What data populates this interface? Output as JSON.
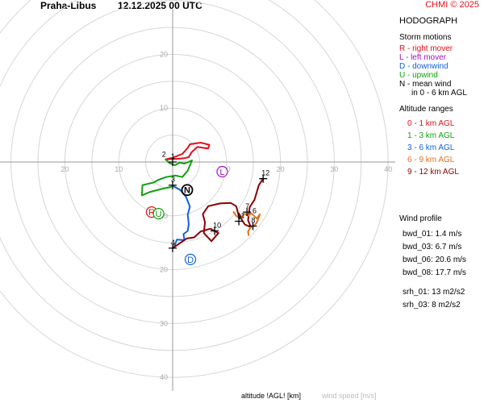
{
  "header": {
    "station": "Praha-Libus",
    "datetime": "12.12.2025 00 UTC",
    "copyright": "CHMI © 2025"
  },
  "panel": {
    "title": "HODOGRAPH",
    "storm_title": "Storm motions",
    "storm_items": [
      {
        "text": "R - right mover",
        "color": "#e0101b"
      },
      {
        "text": "L - left mover",
        "color": "#a010c0"
      },
      {
        "text": "D - downwind",
        "color": "#1060e0"
      },
      {
        "text": "U - upwind",
        "color": "#10a010"
      },
      {
        "text": "N - mean wind",
        "color": "#000000"
      }
    ],
    "storm_note": "in 0 - 6 km AGL",
    "alt_title": "Altitude ranges",
    "alt_items": [
      {
        "text": "0 - 1 km AGL",
        "color": "#e0101b"
      },
      {
        "text": "1 - 3 km AGL",
        "color": "#10a010"
      },
      {
        "text": "3 - 6 km AGL",
        "color": "#1060e0"
      },
      {
        "text": "6 - 9 km AGL",
        "color": "#e07020"
      },
      {
        "text": "9 - 12 km AGL",
        "color": "#8b0000"
      }
    ],
    "wind_title": "Wind profile",
    "wind_items": [
      "bwd_01: 1.4 m/s",
      "bwd_03: 6.7 m/s",
      "bwd_06: 20.6 m/s",
      "bwd_08: 17.7 m/s"
    ],
    "srh_items": [
      "srh_01: 13 m2/s2",
      "srh_03: 8 m2/s2"
    ]
  },
  "footer": {
    "altitude_label": "altitude !AGL! [km]",
    "speed_label": "wind speed [m/s]"
  },
  "chart_data": {
    "type": "line",
    "rings": [
      5,
      10,
      15,
      20,
      25,
      30,
      35,
      40
    ],
    "x_ticks": [
      {
        "v": -20,
        "t": "20"
      },
      {
        "v": -10,
        "t": "10"
      },
      {
        "v": 10,
        "t": "10"
      },
      {
        "v": 20,
        "t": "20"
      },
      {
        "v": 30,
        "t": "30"
      },
      {
        "v": 40,
        "t": "40"
      }
    ],
    "y_ticks": [
      {
        "v": 20,
        "t": "20"
      },
      {
        "v": 10,
        "t": "10"
      },
      {
        "v": -10,
        "t": "10"
      },
      {
        "v": -20,
        "t": "20"
      },
      {
        "v": -30,
        "t": "30"
      },
      {
        "v": -40,
        "t": "40"
      }
    ],
    "segments": [
      {
        "color": "#e0101b",
        "points": [
          [
            -1.3,
            0.5
          ],
          [
            0,
            0.8
          ],
          [
            1.8,
            1.5
          ],
          [
            2.8,
            2.6
          ],
          [
            3.2,
            3.3
          ],
          [
            5.2,
            3.6
          ],
          [
            6.8,
            3.2
          ],
          [
            6.6,
            2.5
          ],
          [
            4.6,
            2.8
          ],
          [
            3.5,
            1.8
          ],
          [
            3.0,
            0.9
          ],
          [
            2.2,
            0.7
          ],
          [
            1.0,
            0.6
          ],
          [
            -1.3,
            0.5
          ]
        ]
      },
      {
        "color": "#10a010",
        "points": [
          [
            -1.3,
            0.5
          ],
          [
            -0.6,
            -0.2
          ],
          [
            0.4,
            -0.6
          ],
          [
            1.3,
            -0.1
          ],
          [
            2.2,
            -0.3
          ],
          [
            3.6,
            0.3
          ],
          [
            2.8,
            -1.6
          ],
          [
            1.8,
            -2.8
          ],
          [
            0.5,
            -2.5
          ],
          [
            -1.2,
            -2.8
          ],
          [
            -2.6,
            -3.3
          ],
          [
            -3.5,
            -3.8
          ],
          [
            -5.6,
            -4.3
          ],
          [
            -5.7,
            -6.2
          ],
          [
            -4.3,
            -5.6
          ],
          [
            -2.0,
            -5.0
          ],
          [
            0.2,
            -4.5
          ]
        ]
      },
      {
        "color": "#1060e0",
        "points": [
          [
            0.2,
            -4.5
          ],
          [
            1.4,
            -5.2
          ],
          [
            2.5,
            -6.5
          ],
          [
            3.2,
            -8.3
          ],
          [
            2.8,
            -9.8
          ],
          [
            3.0,
            -11.5
          ],
          [
            2.8,
            -12.8
          ],
          [
            2.0,
            -13.4
          ],
          [
            2.2,
            -14.5
          ],
          [
            0.8,
            -14.4
          ],
          [
            0.3,
            -15.7
          ],
          [
            0,
            -16.0
          ]
        ]
      },
      {
        "color": "#8b0000",
        "points": [
          [
            0,
            -16.0
          ],
          [
            2.6,
            -14.2
          ],
          [
            4.0,
            -14.0
          ],
          [
            5.2,
            -12.9
          ],
          [
            7.0,
            -12.4
          ],
          [
            8.5,
            -13.2
          ],
          [
            7.2,
            -14.7
          ],
          [
            5.8,
            -13.2
          ],
          [
            6.0,
            -11.2
          ],
          [
            5.6,
            -9.7
          ],
          [
            6.6,
            -8.2
          ],
          [
            8.8,
            -7.7
          ],
          [
            10.8,
            -7.6
          ],
          [
            11.8,
            -8.2
          ],
          [
            12.2,
            -9.7
          ],
          [
            13.4,
            -11.6
          ],
          [
            14.5,
            -12.1
          ],
          [
            14.0,
            -10.8
          ],
          [
            14.3,
            -8.4
          ],
          [
            15.2,
            -7.0
          ],
          [
            16.0,
            -4.3
          ],
          [
            16.8,
            -3.1
          ]
        ]
      },
      {
        "color": "#e07020",
        "points": [
          [
            11.3,
            -9.3
          ],
          [
            11.8,
            -10.0
          ],
          [
            12.6,
            -10.4
          ],
          [
            13.4,
            -9.6
          ],
          [
            14.0,
            -10.0
          ],
          [
            14.6,
            -9.5
          ],
          [
            15.6,
            -10.5
          ],
          [
            16.2,
            -9.7
          ],
          [
            15.6,
            -11.3
          ],
          [
            15.1,
            -11.8
          ],
          [
            14.5,
            -12.1
          ],
          [
            14.0,
            -12.9
          ],
          [
            14.1,
            -13.6
          ]
        ]
      }
    ],
    "crosses": [
      {
        "x": 0,
        "y": 0,
        "label": "1"
      },
      {
        "x": 0,
        "y": -4.3,
        "label": "3"
      },
      {
        "x": 0,
        "y": -16.0,
        "label": "4"
      },
      {
        "x": 7.8,
        "y": -12.8,
        "label": "10"
      },
      {
        "x": 12.3,
        "y": -11.0,
        "label": "11"
      },
      {
        "x": 13.8,
        "y": -9.3,
        "label": "7"
      },
      {
        "x": 14.9,
        "y": -11.9,
        "label": "8"
      },
      {
        "x": 16.8,
        "y": -3.1,
        "label": "12"
      }
    ],
    "extra_labels": [
      {
        "x": -1.6,
        "y": 1.0,
        "label": "2"
      },
      {
        "x": 12.4,
        "y": -10.6,
        "label": "9"
      },
      {
        "x": 15.2,
        "y": -9.5,
        "label": "6"
      }
    ],
    "storm_points": [
      {
        "x": 2.7,
        "y": -5.2,
        "label": "N",
        "color": "#000000",
        "filled": true
      },
      {
        "x": 9.2,
        "y": -1.8,
        "label": "L",
        "color": "#a010c0"
      },
      {
        "x": -3.9,
        "y": -9.3,
        "label": "R",
        "color": "#e0101b"
      },
      {
        "x": -2.6,
        "y": -9.6,
        "label": "U",
        "color": "#10a010"
      },
      {
        "x": 3.3,
        "y": -18.1,
        "label": "D",
        "color": "#1060e0"
      }
    ]
  }
}
